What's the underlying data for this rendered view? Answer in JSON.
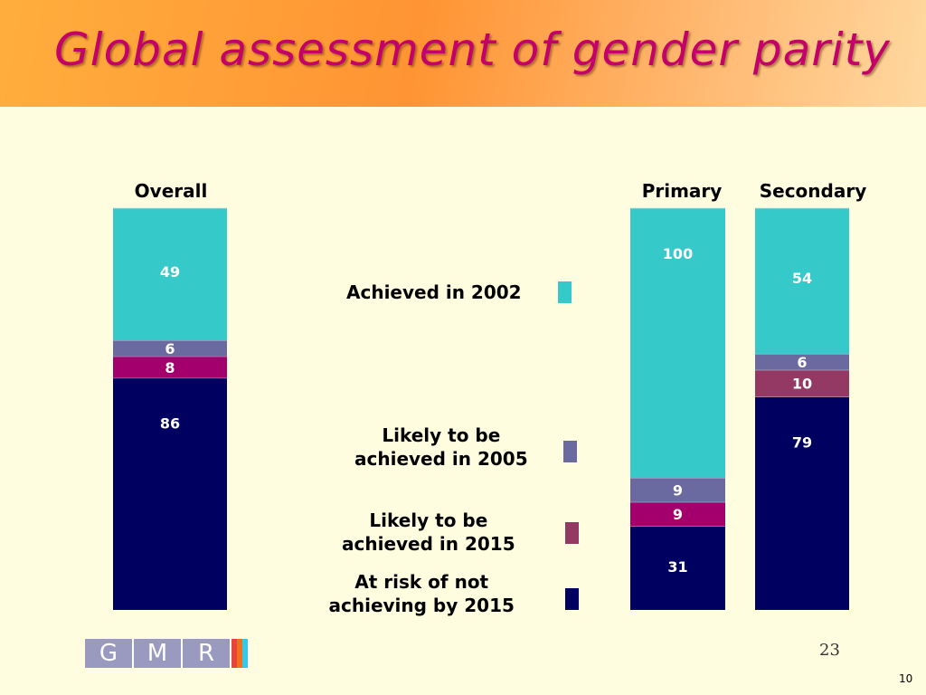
{
  "title": "Global assessment of gender parity",
  "slide_number": "23",
  "page_number": "10",
  "logo": {
    "letters": [
      "G",
      "M",
      "R"
    ],
    "stripe_colors": [
      "#e8443a",
      "#f07020",
      "#35c8e8"
    ]
  },
  "colors": {
    "achieved_2002": "#36c9c9",
    "likely_2005": "#6b6aa0",
    "likely_2015": "#a3006e",
    "at_risk": "#000060",
    "secondary_likely_2015": "#933964"
  },
  "legend": [
    {
      "key": "achieved_2002",
      "lines": [
        "Achieved in 2002"
      ]
    },
    {
      "key": "likely_2005",
      "lines": [
        "Likely to be",
        "achieved in 2005"
      ]
    },
    {
      "key": "likely_2015",
      "lines": [
        "Likely to be",
        "achieved in 2015"
      ]
    },
    {
      "key": "at_risk",
      "lines": [
        "At risk of not",
        "achieving by 2015"
      ]
    }
  ],
  "chart_data": {
    "type": "bar",
    "stacked": true,
    "categories": [
      "Overall",
      "Primary",
      "Secondary"
    ],
    "series": [
      {
        "key": "at_risk",
        "name": "At risk of not achieving by 2015",
        "values": [
          86,
          31,
          79
        ]
      },
      {
        "key": "likely_2015",
        "name": "Likely to be achieved in 2015",
        "values": [
          8,
          9,
          10
        ]
      },
      {
        "key": "likely_2005",
        "name": "Likely to be achieved in 2005",
        "values": [
          6,
          9,
          6
        ]
      },
      {
        "key": "achieved_2002",
        "name": "Achieved in 2002",
        "values": [
          49,
          100,
          54
        ]
      }
    ],
    "legend_position": "center",
    "grid": false
  }
}
